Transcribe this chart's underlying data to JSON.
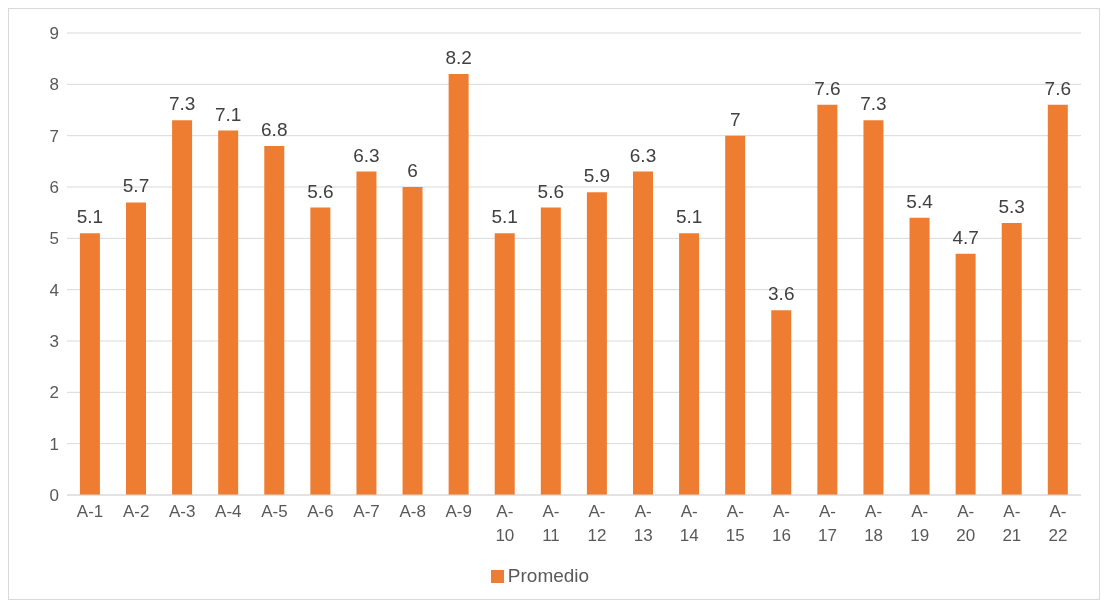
{
  "chart_data": {
    "type": "bar",
    "categories": [
      "A-1",
      "A-2",
      "A-3",
      "A-4",
      "A-5",
      "A-6",
      "A-7",
      "A-8",
      "A-9",
      "A-10",
      "A-11",
      "A-12",
      "A-13",
      "A-14",
      "A-15",
      "A-16",
      "A-17",
      "A-18",
      "A-19",
      "A-20",
      "A-21",
      "A-22"
    ],
    "series": [
      {
        "name": "Promedio",
        "color": "#ef7d31",
        "values": [
          5.1,
          5.7,
          7.3,
          7.1,
          6.8,
          5.6,
          6.3,
          6,
          8.2,
          5.1,
          5.6,
          5.9,
          6.3,
          5.1,
          7,
          3.6,
          7.6,
          7.3,
          5.4,
          4.7,
          5.3,
          7.6
        ]
      }
    ],
    "ylim": [
      0,
      9
    ],
    "yticks": [
      0,
      1,
      2,
      3,
      4,
      5,
      6,
      7,
      8,
      9
    ],
    "grid": "y",
    "legend": "bottom",
    "data_labels": true
  }
}
